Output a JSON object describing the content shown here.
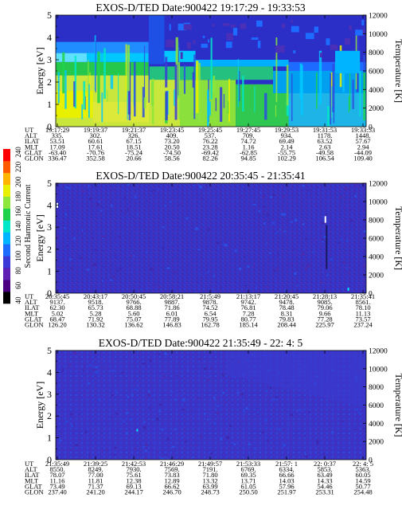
{
  "colors": {
    "bg_deep": "#3a2fc8",
    "bg_mid": "#2b4fe0",
    "cyan": "#00c8ff",
    "lightcyan": "#70e6ff",
    "green": "#25c84a",
    "yellowgreen": "#c8e63c",
    "yellow": "#e8f000"
  },
  "axes": {
    "ylabel_left": "Energy [eV]",
    "ylabel_right": "Temperature [K]",
    "y_ticks": [
      "0",
      "1",
      "2",
      "3",
      "4",
      "5"
    ],
    "right_ticks": [
      "0",
      "2000",
      "4000",
      "6000",
      "8000",
      "10000",
      "12000"
    ],
    "row_labels": [
      "UT",
      "ALT",
      "ILAT",
      "MLT",
      "GLAT",
      "GLON"
    ]
  },
  "colorbar": {
    "label": "Second Harmonic Current",
    "ticks": [
      "40",
      "60",
      "80",
      "100",
      "120",
      "140",
      "160",
      "180",
      "200",
      "220",
      "240"
    ],
    "colors": [
      "#000000",
      "#4b0082",
      "#5d1fb4",
      "#3a3ad8",
      "#1e6cff",
      "#00b4ff",
      "#00e6c8",
      "#1ed24b",
      "#8ce63c",
      "#e6f000",
      "#ffb400",
      "#ff5a00",
      "#ff0000"
    ]
  },
  "chart_data": [
    {
      "type": "heatmap",
      "title": "EXOS-D/TED   Date:900422   19:17:29 - 19:33:53",
      "xlabel": "",
      "ylabel": "Energy [eV]",
      "ylim": [
        0,
        5
      ],
      "y2label": "Temperature [K]",
      "y2lim": [
        0,
        12000
      ],
      "table": {
        "UT": [
          "19:17:29",
          "19:19:37",
          "19:21:37",
          "19:23:45",
          "19:25:45",
          "19:27:45",
          "19:29:53",
          "19:31:53",
          "19:33:53"
        ],
        "ALT": [
          "335.",
          "302.",
          "326.",
          "409.",
          "537.",
          "709.",
          "934.",
          "1178.",
          "1448."
        ],
        "ILAT": [
          "53.51",
          "60.61",
          "67.15",
          "73.20",
          "76.22",
          "74.72",
          "69.49",
          "63.52",
          "57.67"
        ],
        "MLT": [
          "17.09",
          "17.61",
          "18.51",
          "20.50",
          "23.28",
          "1.16",
          "2.14",
          "2.63",
          "2.94"
        ],
        "GLAT": [
          "-63.40",
          "-70.76",
          "-75.24",
          "-74.50",
          "-69.42",
          "-62.85",
          "-55.75",
          "-49.58",
          "-44.09"
        ],
        "GLON": [
          "336.47",
          "352.58",
          "20.66",
          "58.56",
          "82.26",
          "94.85",
          "102.29",
          "106.54",
          "109.40"
        ]
      }
    },
    {
      "type": "heatmap",
      "title": "EXOS-D/TED   Date:900422   20:35:45 - 21:35:41",
      "xlabel": "",
      "ylabel": "Energy [eV]",
      "ylim": [
        0,
        5
      ],
      "y2label": "Temperature [K]",
      "y2lim": [
        0,
        12000
      ],
      "table": {
        "UT": [
          "20:35:45",
          "20:43:17",
          "20:50:45",
          "20:58:21",
          "21:5:49",
          "21:13:17",
          "21:20:45",
          "21:28:13",
          "21:35:41"
        ],
        "ALT": [
          "9137.",
          "9518.",
          "9766.",
          "9887.",
          "9878.",
          "9742.",
          "9478.",
          "9085.",
          "8561."
        ],
        "ILAT": [
          "62.30",
          "65.73",
          "68.88",
          "71.86",
          "74.52",
          "76.81",
          "78.48",
          "79.06",
          "78.10"
        ],
        "MLT": [
          "5.02",
          "5.28",
          "5.60",
          "6.01",
          "6.54",
          "7.28",
          "8.31",
          "9.66",
          "11.13"
        ],
        "GLAT": [
          "68.47",
          "71.92",
          "75.07",
          "77.89",
          "79.95",
          "80.77",
          "79.83",
          "77.28",
          "73.57"
        ],
        "GLON": [
          "126.20",
          "130.32",
          "136.62",
          "146.83",
          "162.78",
          "185.14",
          "208.44",
          "225.97",
          "237.24"
        ]
      }
    },
    {
      "type": "heatmap",
      "title": "EXOS-D/TED   Date:900422   21:35:49 - 22: 4: 5",
      "xlabel": "",
      "ylabel": "Energy [eV]",
      "ylim": [
        0,
        5
      ],
      "y2label": "Temperature [K]",
      "y2lim": [
        0,
        12000
      ],
      "table": {
        "UT": [
          "21:35:49",
          "21:39:25",
          "21:42:53",
          "21:46:29",
          "21:49:57",
          "21:53:33",
          "21:57: 1",
          "22: 0:37",
          "22: 4: 5"
        ],
        "ALT": [
          "8550.",
          "8249.",
          "7930.",
          "7569.",
          "7191.",
          "6769.",
          "6334.",
          "5853.",
          "5363."
        ],
        "ILAT": [
          "78.07",
          "77.00",
          "75.61",
          "73.83",
          "71.80",
          "69.35",
          "66.66",
          "63.49",
          "60.05"
        ],
        "MLT": [
          "11.16",
          "11.81",
          "12.38",
          "12.89",
          "13.32",
          "13.71",
          "14.03",
          "14.33",
          "14.59"
        ],
        "GLAT": [
          "73.49",
          "71.37",
          "69.13",
          "66.62",
          "63.99",
          "61.05",
          "57.96",
          "54.46",
          "50.77"
        ],
        "GLON": [
          "237.40",
          "241.20",
          "244.17",
          "246.70",
          "248.73",
          "250.50",
          "251.97",
          "253.31",
          "254.48"
        ]
      }
    }
  ]
}
